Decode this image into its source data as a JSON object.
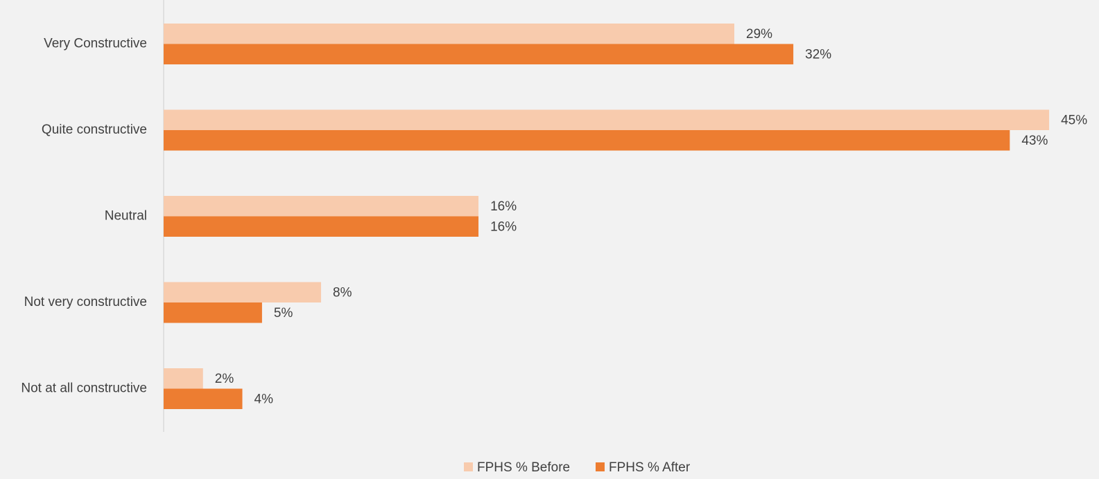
{
  "chart_data": {
    "type": "bar",
    "orientation": "horizontal",
    "categories": [
      "Very Constructive",
      "Quite constructive",
      "Neutral",
      "Not very constructive",
      "Not at all constructive"
    ],
    "series": [
      {
        "name": "FPHS % Before",
        "color": "#f8cbad",
        "values": [
          29,
          45,
          16,
          8,
          2
        ],
        "labels": [
          "29%",
          "45%",
          "16%",
          "8%",
          "2%"
        ]
      },
      {
        "name": "FPHS % After",
        "color": "#ed7d31",
        "values": [
          32,
          43,
          16,
          5,
          4
        ],
        "labels": [
          "32%",
          "43%",
          "16%",
          "5%",
          "4%"
        ]
      }
    ],
    "grid": false,
    "legend": "bottom"
  }
}
